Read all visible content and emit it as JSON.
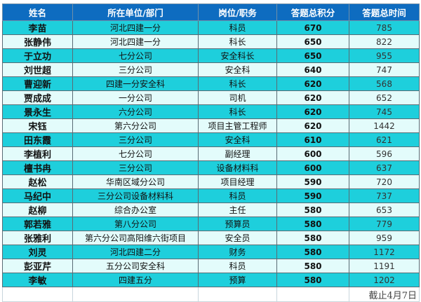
{
  "table": {
    "headers": [
      "姓名",
      "所在单位/部门",
      "岗位/职务",
      "答题总积分",
      "答题总时间"
    ],
    "rows": [
      [
        "李苗",
        "河北四建一分",
        "科员",
        "670",
        "785"
      ],
      [
        "张静伟",
        "河北四建一分",
        "科长",
        "650",
        "822"
      ],
      [
        "于立功",
        "七分公司",
        "安全科长",
        "650",
        "955"
      ],
      [
        "刘世超",
        "三分公司",
        "安全科",
        "640",
        "747"
      ],
      [
        "曹迎新",
        "四建一分安全科",
        "科长",
        "620",
        "568"
      ],
      [
        "贾成成",
        "一分公司",
        "司机",
        "620",
        "652"
      ],
      [
        "景永生",
        "六分公司",
        "科长",
        "620",
        "745"
      ],
      [
        "宋钰",
        "第六分公司",
        "项目主管工程师",
        "620",
        "1442"
      ],
      [
        "田东霞",
        "三分公司",
        "安全科",
        "610",
        "621"
      ],
      [
        "李植利",
        "七分公司",
        "副经理",
        "600",
        "596"
      ],
      [
        "檀书冉",
        "三分公司",
        "设备材料科",
        "600",
        "637"
      ],
      [
        "赵松",
        "华南区域分公司",
        "项目经理",
        "590",
        "720"
      ],
      [
        "马纪中",
        "三分公司设备材料科",
        "科员",
        "590",
        "737"
      ],
      [
        "赵柳",
        "综合办公室",
        "主任",
        "580",
        "653"
      ],
      [
        "郭若雅",
        "第八分公司",
        "预算员",
        "580",
        "779"
      ],
      [
        "张雅利",
        "第六分公司高阳维六街项目",
        "安全员",
        "580",
        "959"
      ],
      [
        "刘灵",
        "河北四建二分",
        "财务",
        "580",
        "1172"
      ],
      [
        "彭亚芹",
        "五分公司安全科",
        "科员",
        "580",
        "1191"
      ],
      [
        "李敏",
        "四建五分",
        "预算",
        "580",
        "1202"
      ]
    ],
    "footer_note": "截止4月7日"
  },
  "colors": {
    "header": "#0e6cc0",
    "row_odd": "#1ecfdc",
    "row_even": "#e3fcfb"
  }
}
